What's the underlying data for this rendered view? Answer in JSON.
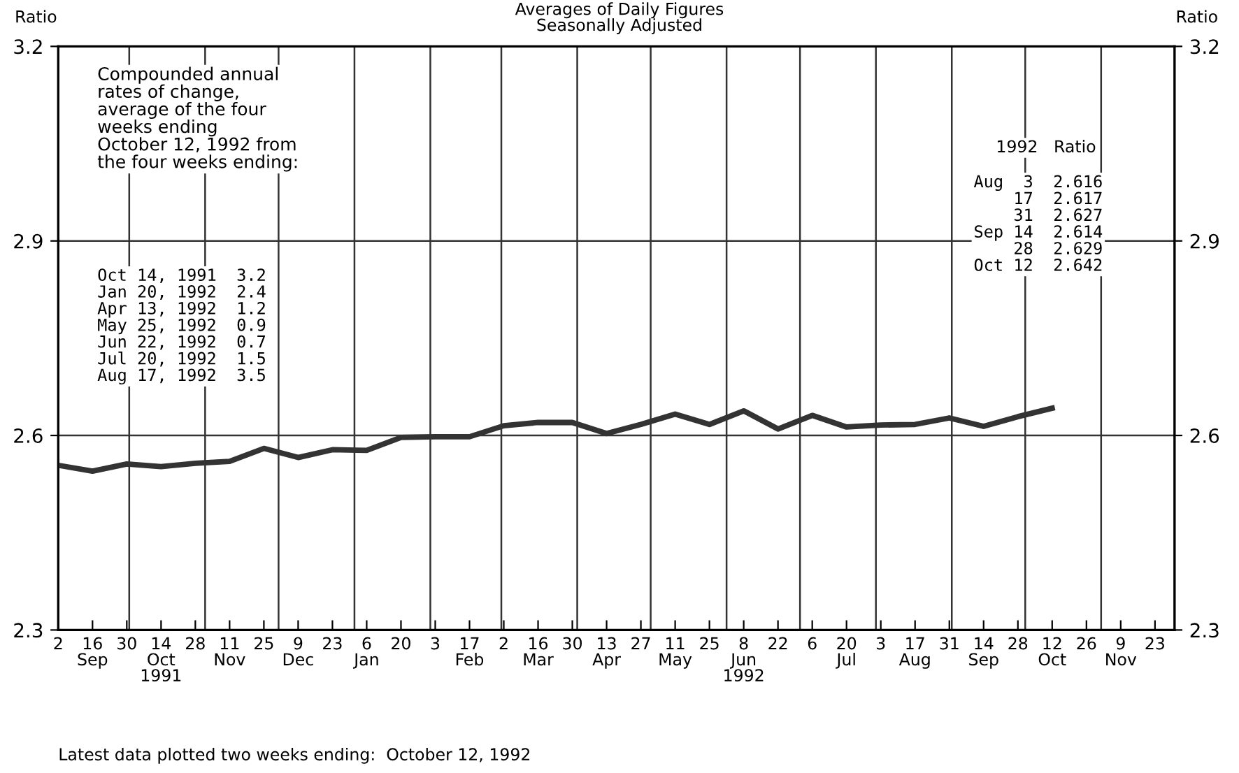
{
  "chart_data": {
    "type": "line",
    "title": "Averages of Daily Figures\nSeasonally Adjusted",
    "ylabel": "Ratio",
    "y2label": "Ratio",
    "x": [
      "1991-09-02",
      "1991-09-16",
      "1991-09-30",
      "1991-10-14",
      "1991-10-28",
      "1991-11-11",
      "1991-11-25",
      "1991-12-09",
      "1991-12-23",
      "1992-01-06",
      "1992-01-20",
      "1992-02-03",
      "1992-02-17",
      "1992-03-02",
      "1992-03-16",
      "1992-03-30",
      "1992-04-13",
      "1992-04-27",
      "1992-05-11",
      "1992-05-25",
      "1992-06-08",
      "1992-06-22",
      "1992-07-06",
      "1992-07-20",
      "1992-08-03",
      "1992-08-17",
      "1992-08-31",
      "1992-09-14",
      "1992-09-28",
      "1992-10-12"
    ],
    "series": [
      {
        "color": "#333333",
        "values": [
          2.554,
          2.545,
          2.556,
          2.552,
          2.557,
          2.56,
          2.58,
          2.566,
          2.578,
          2.577,
          2.597,
          2.598,
          2.598,
          2.615,
          2.62,
          2.62,
          2.603,
          2.617,
          2.633,
          2.617,
          2.638,
          2.61,
          2.631,
          2.613,
          2.616,
          2.617,
          2.627,
          2.614,
          2.629,
          2.642
        ]
      }
    ],
    "xlim": [
      "1991-09-02",
      "1992-12-01"
    ],
    "xticks": [
      {
        "value": "1991-09-02",
        "label": "2"
      },
      {
        "value": "1991-09-16",
        "label": "16\nSep"
      },
      {
        "value": "1991-09-30",
        "label": "30"
      },
      {
        "value": "1991-10-14",
        "label": "14\nOct\n1991"
      },
      {
        "value": "1991-10-28",
        "label": "28"
      },
      {
        "value": "1991-11-11",
        "label": "11\nNov"
      },
      {
        "value": "1991-11-25",
        "label": "25"
      },
      {
        "value": "1991-12-09",
        "label": "9\nDec"
      },
      {
        "value": "1991-12-23",
        "label": "23"
      },
      {
        "value": "1992-01-06",
        "label": "6\nJan"
      },
      {
        "value": "1992-01-20",
        "label": "20"
      },
      {
        "value": "1992-02-03",
        "label": "3"
      },
      {
        "value": "1992-02-17",
        "label": "17\nFeb"
      },
      {
        "value": "1992-03-02",
        "label": "2"
      },
      {
        "value": "1992-03-16",
        "label": "16\nMar"
      },
      {
        "value": "1992-03-30",
        "label": "30"
      },
      {
        "value": "1992-04-13",
        "label": "13\nApr"
      },
      {
        "value": "1992-04-27",
        "label": "27"
      },
      {
        "value": "1992-05-11",
        "label": "11\nMay"
      },
      {
        "value": "1992-05-25",
        "label": "25"
      },
      {
        "value": "1992-06-08",
        "label": "8\nJun\n1992"
      },
      {
        "value": "1992-06-22",
        "label": "22"
      },
      {
        "value": "1992-07-06",
        "label": "6"
      },
      {
        "value": "1992-07-20",
        "label": "20\nJul"
      },
      {
        "value": "1992-08-03",
        "label": "3"
      },
      {
        "value": "1992-08-17",
        "label": "17\nAug"
      },
      {
        "value": "1992-08-31",
        "label": "31"
      },
      {
        "value": "1992-09-14",
        "label": "14\nSep"
      },
      {
        "value": "1992-09-28",
        "label": "28"
      },
      {
        "value": "1992-10-12",
        "label": "12\nOct"
      },
      {
        "value": "1992-10-26",
        "label": "26"
      },
      {
        "value": "1992-11-09",
        "label": "9\nNov"
      },
      {
        "value": "1992-11-23",
        "label": "23"
      }
    ],
    "ylim": [
      2.3,
      3.2
    ],
    "yticks": [
      2.3,
      2.6,
      2.9,
      3.2
    ],
    "y2lim": [
      2.3,
      3.2
    ],
    "y2ticks": [
      2.3,
      2.6,
      2.9,
      3.2
    ],
    "grid": "y",
    "marker": "none",
    "line_style": "solid",
    "ref_lines": [
      {
        "axis": "x",
        "value": "1991-10-01"
      },
      {
        "axis": "x",
        "value": "1991-11-01"
      },
      {
        "axis": "x",
        "value": "1991-12-01"
      },
      {
        "axis": "x",
        "value": "1992-01-01"
      },
      {
        "axis": "x",
        "value": "1992-02-01"
      },
      {
        "axis": "x",
        "value": "1992-03-01"
      },
      {
        "axis": "x",
        "value": "1992-04-01"
      },
      {
        "axis": "x",
        "value": "1992-05-01"
      },
      {
        "axis": "x",
        "value": "1992-06-01"
      },
      {
        "axis": "x",
        "value": "1992-07-01"
      },
      {
        "axis": "x",
        "value": "1992-08-01"
      },
      {
        "axis": "x",
        "value": "1992-09-01"
      },
      {
        "axis": "x",
        "value": "1992-10-01"
      },
      {
        "axis": "x",
        "value": "1992-11-01"
      }
    ],
    "annotations": [
      "Compounded annual\nrates of change,\naverage of the four\nweeks ending\nOctober 12, 1992 from\nthe four weeks ending:",
      "Oct 14, 1991  3.2\nJan 20, 1992  2.4\nApr 13, 1992  1.2\nMay 25, 1992  0.9\nJun 22, 1992  0.7\nJul 20, 1992  1.5\nAug 17, 1992  3.5",
      "1992   Ratio",
      "Aug  3  2.616\n    17  2.617\n    31  2.627\nSep 14  2.614\n    28  2.629\nOct 12  2.642",
      "Latest data plotted two weeks ending:  October 12, 1992"
    ]
  }
}
